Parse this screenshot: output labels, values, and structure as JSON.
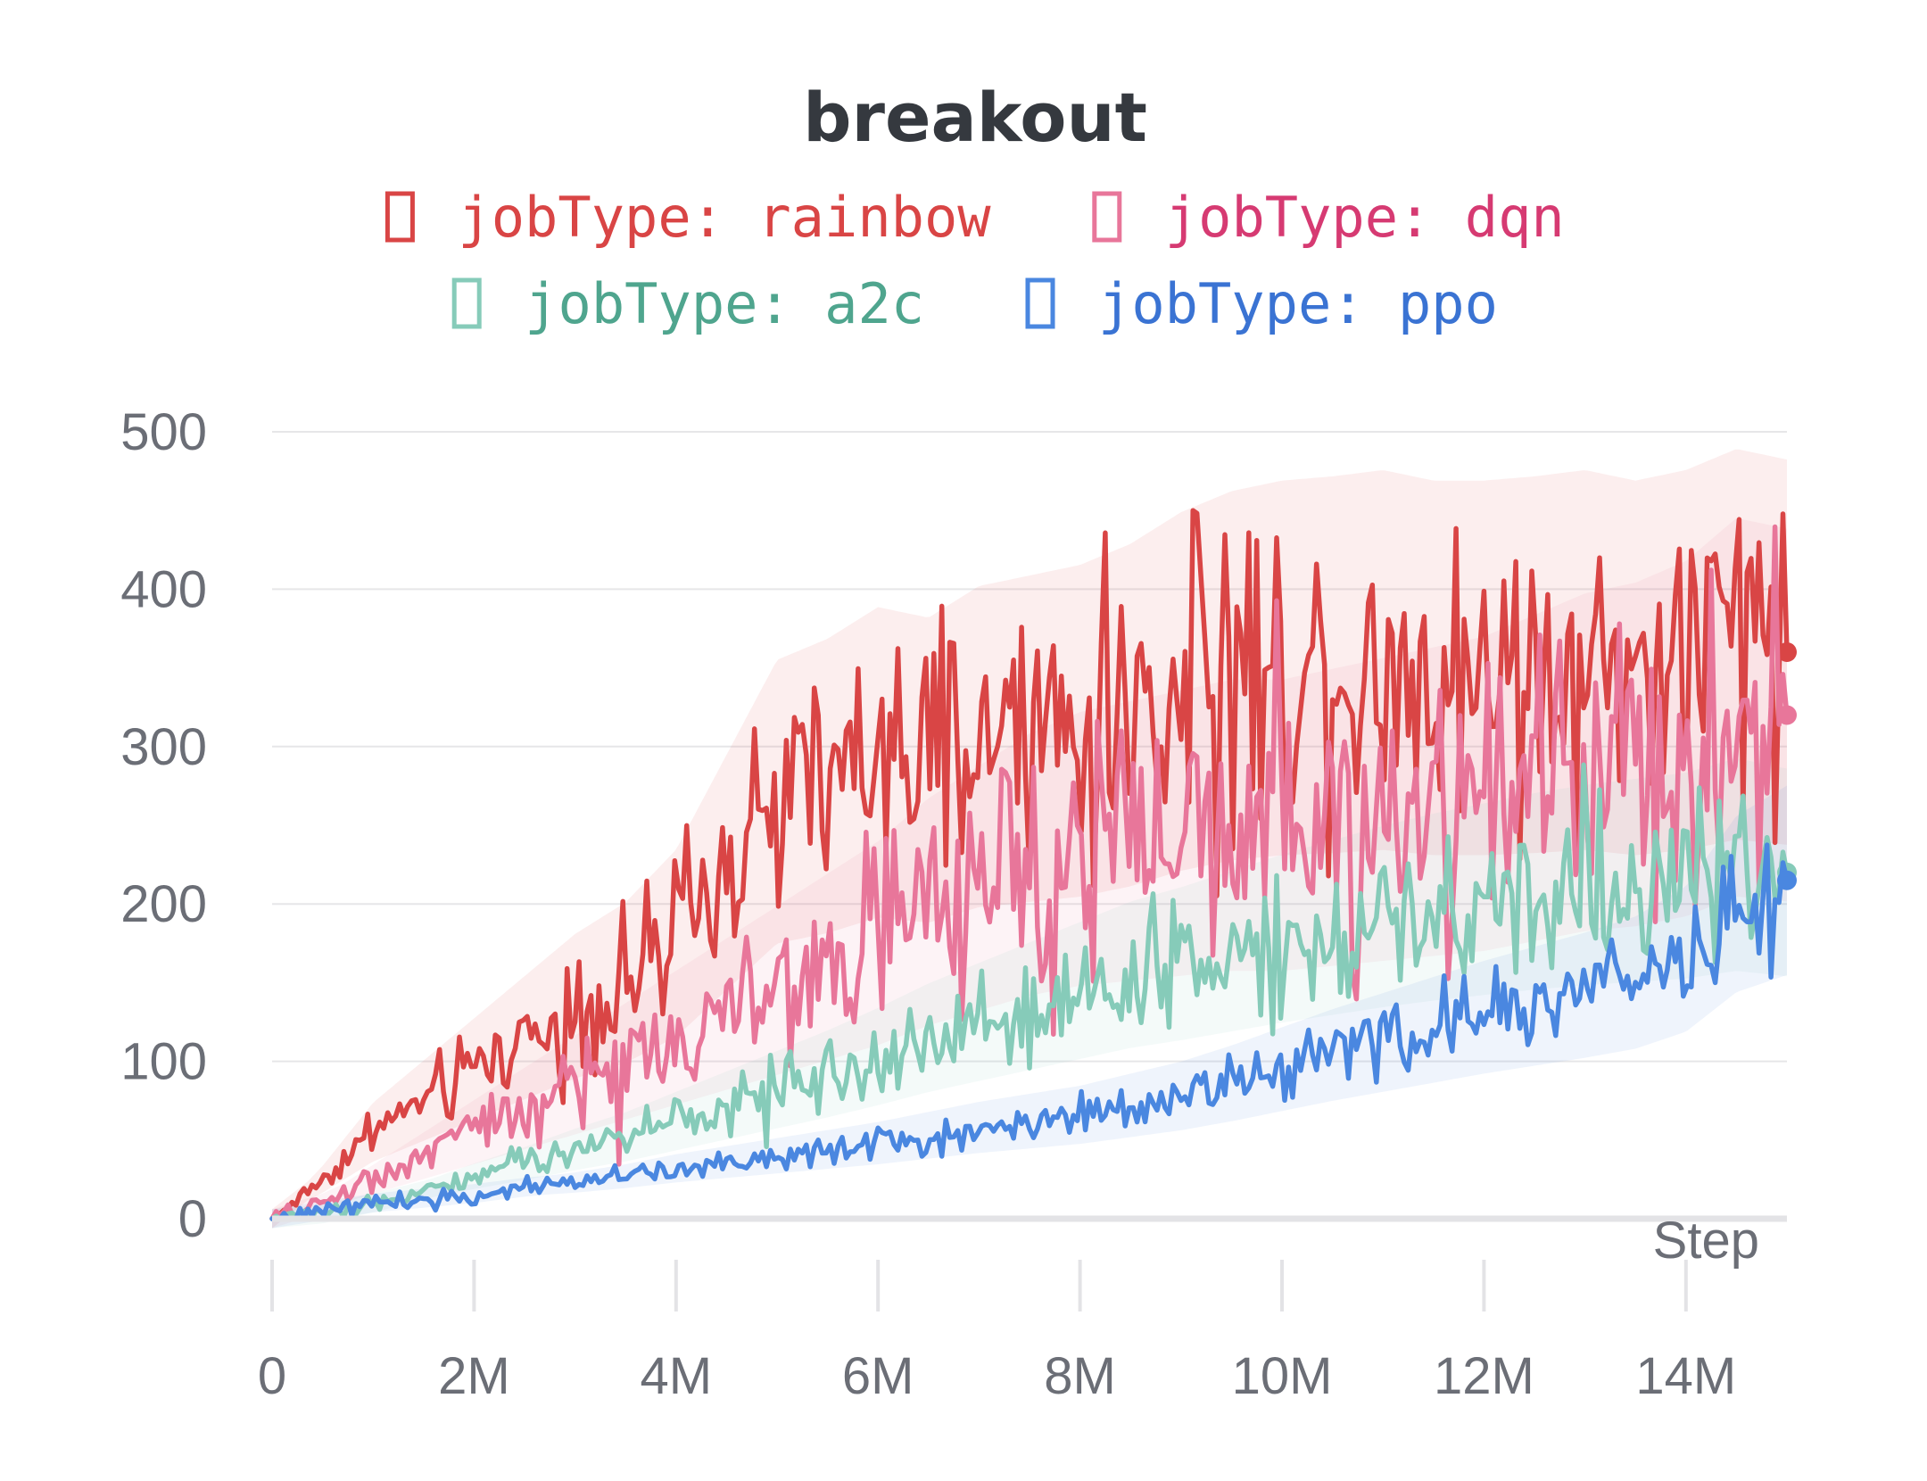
{
  "chart_data": {
    "type": "line",
    "title": "breakout",
    "xlabel": "Step",
    "ylabel": "",
    "xlim": [
      0,
      15000000
    ],
    "ylim": [
      0,
      500
    ],
    "x_ticks": [
      {
        "value": 0,
        "label": "0"
      },
      {
        "value": 2000000,
        "label": "2M"
      },
      {
        "value": 4000000,
        "label": "4M"
      },
      {
        "value": 6000000,
        "label": "6M"
      },
      {
        "value": 8000000,
        "label": "8M"
      },
      {
        "value": 10000000,
        "label": "10M"
      },
      {
        "value": 12000000,
        "label": "12M"
      },
      {
        "value": 14000000,
        "label": "14M"
      }
    ],
    "y_ticks": [
      {
        "value": 0,
        "label": "0"
      },
      {
        "value": 100,
        "label": "100"
      },
      {
        "value": 200,
        "label": "200"
      },
      {
        "value": 300,
        "label": "300"
      },
      {
        "value": 400,
        "label": "400"
      },
      {
        "value": 500,
        "label": "500"
      }
    ],
    "grid": true,
    "legend": "top",
    "x": [
      0,
      500000,
      1000000,
      1500000,
      2000000,
      2500000,
      3000000,
      3500000,
      4000000,
      4500000,
      5000000,
      5500000,
      6000000,
      6500000,
      7000000,
      7500000,
      8000000,
      8500000,
      9000000,
      9500000,
      10000000,
      10500000,
      11000000,
      11500000,
      12000000,
      12500000,
      13000000,
      13500000,
      14000000,
      14500000,
      15000000
    ],
    "series": [
      {
        "name": "jobType: rainbow",
        "color": "#d94545",
        "label_color": "#d94545",
        "values": [
          0,
          25,
          55,
          75,
          95,
          115,
          135,
          150,
          175,
          220,
          265,
          275,
          290,
          285,
          300,
          305,
          310,
          320,
          335,
          345,
          350,
          352,
          355,
          350,
          350,
          352,
          355,
          350,
          355,
          365,
          360
        ]
      },
      {
        "name": "jobType: dqn",
        "color": "#e8769a",
        "label_color": "#d63a72",
        "values": [
          0,
          10,
          25,
          40,
          55,
          70,
          85,
          100,
          115,
          130,
          145,
          160,
          175,
          195,
          210,
          225,
          235,
          240,
          245,
          250,
          250,
          255,
          260,
          265,
          270,
          280,
          290,
          295,
          305,
          325,
          320
        ]
      },
      {
        "name": "jobType: a2c",
        "color": "#86cbb9",
        "label_color": "#4fa58e",
        "values": [
          0,
          3,
          10,
          18,
          27,
          35,
          44,
          52,
          62,
          72,
          82,
          92,
          103,
          115,
          125,
          135,
          145,
          155,
          162,
          170,
          178,
          185,
          192,
          198,
          203,
          208,
          212,
          215,
          218,
          225,
          220
        ]
      },
      {
        "name": "jobType: ppo",
        "color": "#4a87e0",
        "label_color": "#3a73d3",
        "values": [
          0,
          5,
          10,
          13,
          16,
          20,
          23,
          27,
          32,
          36,
          40,
          44,
          48,
          53,
          58,
          62,
          66,
          72,
          78,
          86,
          95,
          104,
          112,
          120,
          128,
          135,
          142,
          150,
          165,
          200,
          215
        ]
      }
    ]
  }
}
